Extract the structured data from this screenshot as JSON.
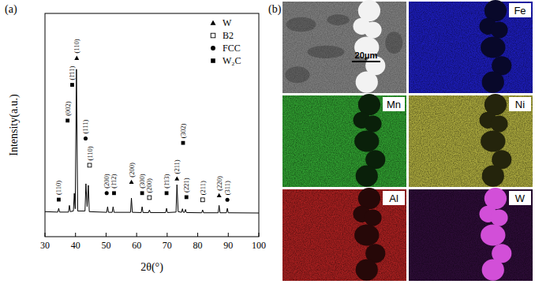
{
  "chart_data": {
    "type": "line",
    "panel_label": "(a)",
    "x_label": "2θ(°)",
    "y_label": "Intensity(a.u.)",
    "xlim": [
      30,
      100
    ],
    "xticks": [
      30,
      40,
      50,
      60,
      70,
      80,
      90,
      100
    ],
    "ylim": [
      0,
      100
    ],
    "yticks": [],
    "tick_labels": "x",
    "grid": false,
    "color": "#000000",
    "legend": "upper right",
    "x": [
      30,
      34.2,
      34.5,
      34.8,
      37.7,
      38.0,
      38.3,
      39.3,
      39.6,
      39.9,
      40.3,
      40.7,
      43.1,
      43.4,
      43.8,
      44.2,
      44.5,
      50.2,
      50.5,
      50.8,
      52.0,
      52.3,
      52.6,
      58.0,
      58.3,
      58.6,
      61.5,
      61.8,
      62.1,
      63.9,
      64.2,
      64.5,
      69.5,
      69.8,
      70.1,
      72.9,
      73.2,
      73.6,
      74.7,
      75.0,
      75.3,
      75.7,
      76.0,
      76.3,
      81.3,
      81.6,
      81.9,
      86.7,
      87.0,
      87.3,
      89.4,
      89.7,
      90.0,
      100
    ],
    "values": [
      11.2,
      11.0,
      12.7,
      11.0,
      11.0,
      14.0,
      11.2,
      11.5,
      19.4,
      12.5,
      75.0,
      11.5,
      11.5,
      23.7,
      13.5,
      23.0,
      11.2,
      10.9,
      13.4,
      10.9,
      10.9,
      13.4,
      10.9,
      10.9,
      17.3,
      10.9,
      10.8,
      13.4,
      10.8,
      10.8,
      12.0,
      10.8,
      10.8,
      12.7,
      10.8,
      11.0,
      23.3,
      11.2,
      10.9,
      12.5,
      10.9,
      10.9,
      12.2,
      10.8,
      10.7,
      12.0,
      10.7,
      10.7,
      14.0,
      10.7,
      10.7,
      12.7,
      10.7,
      10.6
    ],
    "phases": [
      {
        "name": "W",
        "marker": "triangle"
      },
      {
        "name": "B2",
        "marker": "square-open"
      },
      {
        "name": "FCC",
        "marker": "circle"
      },
      {
        "name": "W₂C",
        "marker": "square"
      }
    ],
    "annotations": [
      {
        "x": 34.5,
        "y": 16.6,
        "text": "(110)",
        "phase": "W₂C"
      },
      {
        "x": 37.4,
        "y": 52,
        "text": "(002)",
        "phase": "W₂C"
      },
      {
        "x": 38.9,
        "y": 68,
        "text": "(1̄11)",
        "phase": "W₂C"
      },
      {
        "x": 40.4,
        "y": 80,
        "text": "(110)",
        "phase": "W"
      },
      {
        "x": 43.3,
        "y": 44,
        "text": "(111)",
        "phase": "FCC"
      },
      {
        "x": 44.6,
        "y": 32,
        "text": "(110)",
        "phase": "B2"
      },
      {
        "x": 50.2,
        "y": 19.5,
        "text": "(200)",
        "phase": "FCC"
      },
      {
        "x": 52.6,
        "y": 19.5,
        "text": "(1̄12)",
        "phase": "W₂C"
      },
      {
        "x": 58.3,
        "y": 24.5,
        "text": "(200)",
        "phase": "W"
      },
      {
        "x": 61.8,
        "y": 19.5,
        "text": "(300)",
        "phase": "W₂C"
      },
      {
        "x": 64.2,
        "y": 17.5,
        "text": "(200)",
        "phase": "B2"
      },
      {
        "x": 69.8,
        "y": 19.5,
        "text": "(1̄13)",
        "phase": "W₂C"
      },
      {
        "x": 73.2,
        "y": 26,
        "text": "(211)",
        "phase": "W"
      },
      {
        "x": 75.2,
        "y": 42,
        "text": "(302)",
        "phase": "W₂C"
      },
      {
        "x": 76.3,
        "y": 17.7,
        "text": "(2̄21)",
        "phase": "W₂C"
      },
      {
        "x": 81.6,
        "y": 16.5,
        "text": "(211)",
        "phase": "B2"
      },
      {
        "x": 87.0,
        "y": 18.5,
        "text": "(220)",
        "phase": "W"
      },
      {
        "x": 89.7,
        "y": 16.5,
        "text": "(311)",
        "phase": "FCC"
      }
    ]
  },
  "panel_b": {
    "label": "(b)",
    "scale_bar": "20μm",
    "maps": [
      {
        "element": "Fe",
        "color": "#1c1cb4",
        "phase_color": "#08082a"
      },
      {
        "element": "Mn",
        "color": "#2f9a2f",
        "phase_color": "#0a200a"
      },
      {
        "element": "Ni",
        "color": "#a6a43c",
        "phase_color": "#24240c"
      },
      {
        "element": "Al",
        "color": "#a41f1f",
        "phase_color": "#260808"
      },
      {
        "element": "W",
        "color": "#2c0c36",
        "phase_color": "#d24fd8"
      }
    ]
  }
}
